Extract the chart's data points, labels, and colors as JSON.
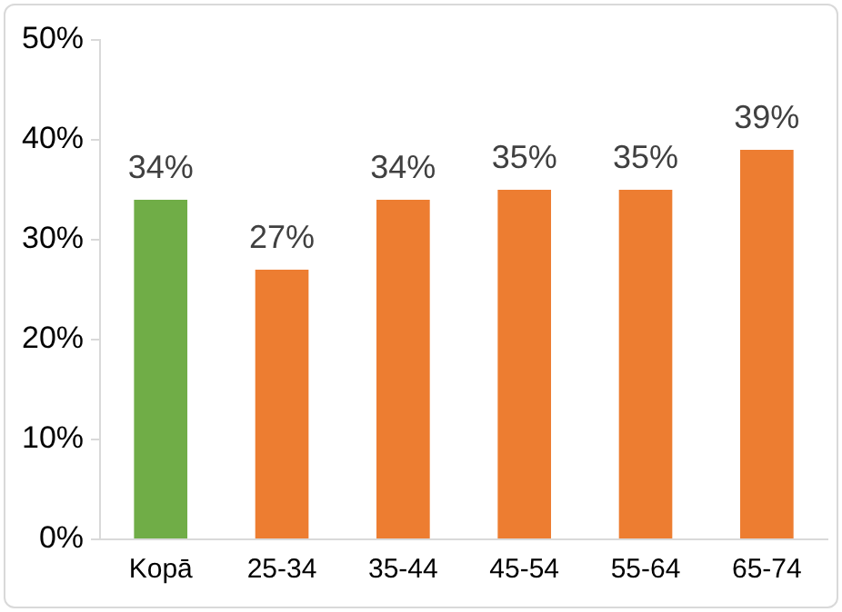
{
  "chart_data": {
    "type": "bar",
    "categories": [
      "Kopā",
      "25-34",
      "35-44",
      "45-54",
      "55-64",
      "65-74"
    ],
    "values": [
      34,
      27,
      34,
      35,
      35,
      39
    ],
    "colors": [
      "#70ad47",
      "#ed7d31",
      "#ed7d31",
      "#ed7d31",
      "#ed7d31",
      "#ed7d31"
    ],
    "value_labels": [
      "34%",
      "27%",
      "34%",
      "35%",
      "35%",
      "39%"
    ],
    "ylim": [
      0,
      50
    ],
    "yticks": [
      {
        "value": 0,
        "label": "0%"
      },
      {
        "value": 10,
        "label": "10%"
      },
      {
        "value": 20,
        "label": "20%"
      },
      {
        "value": 30,
        "label": "30%"
      },
      {
        "value": 40,
        "label": "40%"
      },
      {
        "value": 50,
        "label": "50%"
      }
    ],
    "grid": false,
    "legend": false
  }
}
